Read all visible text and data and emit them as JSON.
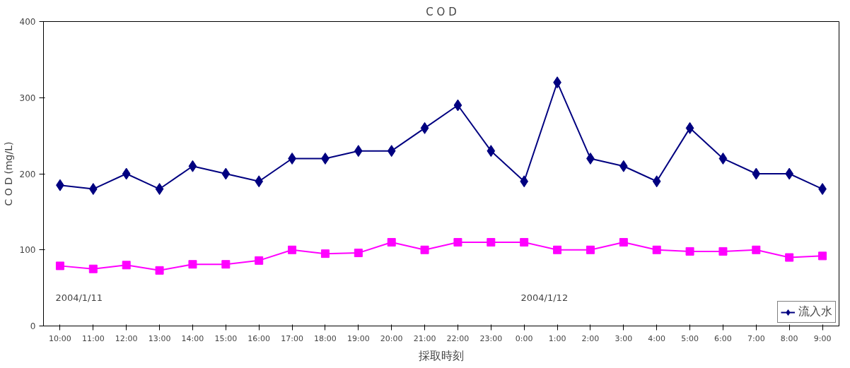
{
  "chart_data": {
    "type": "line",
    "title": "C O D",
    "xlabel": "採取時刻",
    "ylabel": "C O D (mg/L)",
    "categories": [
      "10:00",
      "11:00",
      "12:00",
      "13:00",
      "14:00",
      "15:00",
      "16:00",
      "17:00",
      "18:00",
      "19:00",
      "20:00",
      "21:00",
      "22:00",
      "23:00",
      "0:00",
      "1:00",
      "2:00",
      "3:00",
      "4:00",
      "5:00",
      "6:00",
      "7:00",
      "8:00",
      "9:00"
    ],
    "series": [
      {
        "name": "流入水",
        "color": "#000080",
        "marker": "diamond",
        "values": [
          185,
          180,
          200,
          180,
          210,
          200,
          190,
          220,
          220,
          230,
          230,
          260,
          290,
          230,
          190,
          320,
          220,
          210,
          190,
          260,
          220,
          200,
          200,
          180
        ]
      },
      {
        "color": "#ff00ff",
        "marker": "square",
        "values": [
          79,
          75,
          80,
          73,
          81,
          81,
          86,
          100,
          95,
          96,
          110,
          100,
          110,
          110,
          110,
          100,
          100,
          110,
          100,
          98,
          98,
          100,
          90,
          92
        ]
      }
    ],
    "ylim": [
      0,
      400
    ],
    "yticks": [
      0,
      100,
      200,
      300,
      400
    ],
    "grid": false,
    "legend": "bottom right",
    "line_style": "solid",
    "annotations": [
      "2004/1/11",
      "2004/1/12"
    ]
  }
}
